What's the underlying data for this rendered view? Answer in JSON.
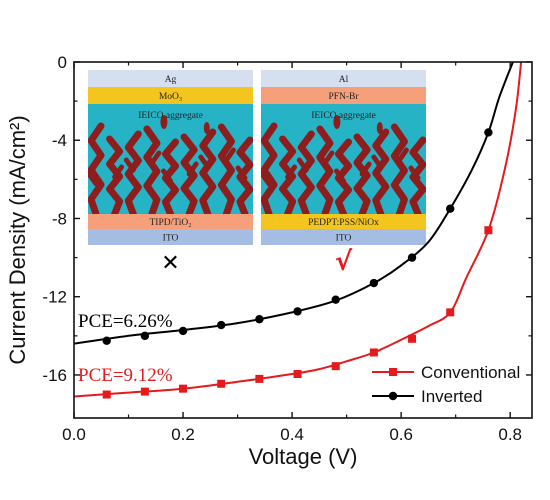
{
  "chart_data": {
    "type": "line",
    "xlabel": "Voltage (V)",
    "ylabel": "Current Density (mA/cm²)",
    "xlim": [
      0.0,
      0.84
    ],
    "ylim": [
      -18.2,
      0
    ],
    "xticks": [
      "0.0",
      "0.2",
      "0.4",
      "0.6",
      "0.8"
    ],
    "yticks": [
      "0",
      "-4",
      "-8",
      "-12",
      "-16"
    ],
    "grid": false,
    "legend_position": "bottom-right",
    "series": [
      {
        "name": "Conventional",
        "color": "#e41a1c",
        "marker": "square",
        "curve": [
          [
            0.0,
            -17.1
          ],
          [
            0.1,
            -16.9
          ],
          [
            0.2,
            -16.7
          ],
          [
            0.3,
            -16.35
          ],
          [
            0.4,
            -15.95
          ],
          [
            0.45,
            -15.7
          ],
          [
            0.5,
            -15.3
          ],
          [
            0.55,
            -14.85
          ],
          [
            0.6,
            -14.2
          ],
          [
            0.65,
            -13.5
          ],
          [
            0.69,
            -12.8
          ],
          [
            0.72,
            -11.0
          ],
          [
            0.76,
            -8.6
          ],
          [
            0.79,
            -5.5
          ],
          [
            0.81,
            -2.5
          ],
          [
            0.82,
            0.0
          ]
        ],
        "points": [
          [
            0.06,
            -17.0
          ],
          [
            0.13,
            -16.85
          ],
          [
            0.2,
            -16.7
          ],
          [
            0.27,
            -16.45
          ],
          [
            0.34,
            -16.2
          ],
          [
            0.41,
            -15.95
          ],
          [
            0.48,
            -15.55
          ],
          [
            0.55,
            -14.85
          ],
          [
            0.62,
            -14.15
          ],
          [
            0.69,
            -12.8
          ],
          [
            0.76,
            -8.6
          ]
        ]
      },
      {
        "name": "Inverted",
        "color": "#000000",
        "marker": "circle",
        "curve": [
          [
            0.0,
            -14.4
          ],
          [
            0.1,
            -14.0
          ],
          [
            0.2,
            -13.7
          ],
          [
            0.3,
            -13.35
          ],
          [
            0.4,
            -12.8
          ],
          [
            0.48,
            -12.2
          ],
          [
            0.55,
            -11.3
          ],
          [
            0.6,
            -10.4
          ],
          [
            0.65,
            -9.2
          ],
          [
            0.69,
            -7.5
          ],
          [
            0.73,
            -5.5
          ],
          [
            0.76,
            -3.6
          ],
          [
            0.78,
            -1.8
          ],
          [
            0.805,
            0.0
          ]
        ],
        "points": [
          [
            0.06,
            -14.25
          ],
          [
            0.13,
            -14.0
          ],
          [
            0.2,
            -13.75
          ],
          [
            0.27,
            -13.45
          ],
          [
            0.34,
            -13.15
          ],
          [
            0.41,
            -12.75
          ],
          [
            0.48,
            -12.15
          ],
          [
            0.55,
            -11.3
          ],
          [
            0.62,
            -10.0
          ],
          [
            0.69,
            -7.5
          ],
          [
            0.76,
            -3.6
          ]
        ]
      }
    ],
    "annotations": {
      "inverted_pce": "PCE=6.26%",
      "conventional_pce": "PCE=9.12%"
    }
  },
  "insets": [
    {
      "name": "conventional-device",
      "layers_top_to_bottom": [
        "Ag",
        "MoO₃",
        "IEICO aggregate",
        "TIPD/TiO₂",
        "ITO"
      ],
      "colors": [
        "#d6dff0",
        "#f4c51e",
        "#27b3c6",
        "#f5a07a",
        "#a6bde3"
      ],
      "mark": "✕",
      "mark_color": "#000000"
    },
    {
      "name": "inverted-device",
      "layers_top_to_bottom": [
        "Al",
        "PFN-Br",
        "IEICO aggregate",
        "PEDPT:PSS/NiOx",
        "ITO"
      ],
      "colors": [
        "#d6dff0",
        "#f5a07a",
        "#27b3c6",
        "#f4c51e",
        "#a6bde3"
      ],
      "mark": "√",
      "mark_color": "#e41a1c"
    }
  ],
  "aggregate_color": "#8e1e1e"
}
